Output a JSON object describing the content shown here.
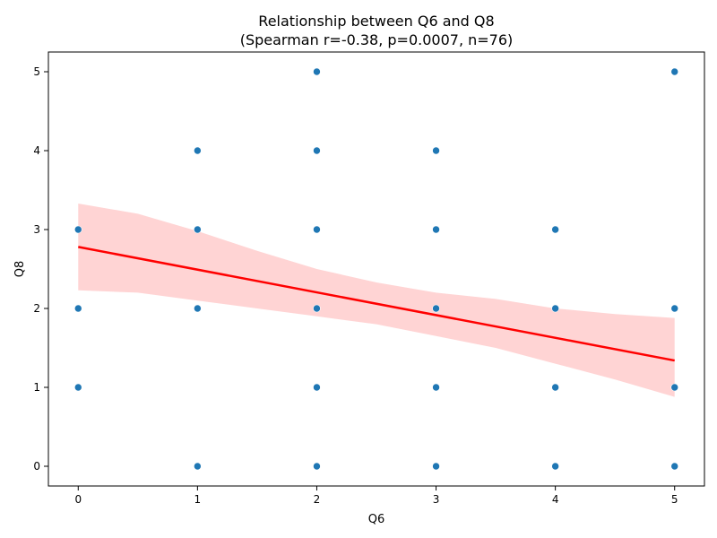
{
  "chart_data": {
    "type": "scatter",
    "title": "Relationship between Q6 and Q8",
    "subtitle": "(Spearman r=-0.38, p=0.0007, n=76)",
    "xlabel": "Q6",
    "ylabel": "Q8",
    "xlim": [
      -0.25,
      5.25
    ],
    "ylim": [
      -0.25,
      5.25
    ],
    "xticks": [
      0,
      1,
      2,
      3,
      4,
      5
    ],
    "yticks": [
      0,
      1,
      2,
      3,
      4,
      5
    ],
    "grid": false,
    "points": [
      {
        "x": 0,
        "y": 3
      },
      {
        "x": 0,
        "y": 2
      },
      {
        "x": 0,
        "y": 1
      },
      {
        "x": 1,
        "y": 4
      },
      {
        "x": 1,
        "y": 3
      },
      {
        "x": 1,
        "y": 2
      },
      {
        "x": 1,
        "y": 0
      },
      {
        "x": 2,
        "y": 5
      },
      {
        "x": 2,
        "y": 4
      },
      {
        "x": 2,
        "y": 3
      },
      {
        "x": 2,
        "y": 2
      },
      {
        "x": 2,
        "y": 1
      },
      {
        "x": 2,
        "y": 0
      },
      {
        "x": 3,
        "y": 4
      },
      {
        "x": 3,
        "y": 3
      },
      {
        "x": 3,
        "y": 2
      },
      {
        "x": 3,
        "y": 1
      },
      {
        "x": 3,
        "y": 0
      },
      {
        "x": 4,
        "y": 3
      },
      {
        "x": 4,
        "y": 2
      },
      {
        "x": 4,
        "y": 1
      },
      {
        "x": 4,
        "y": 0
      },
      {
        "x": 5,
        "y": 5
      },
      {
        "x": 5,
        "y": 2
      },
      {
        "x": 5,
        "y": 1
      },
      {
        "x": 5,
        "y": 0
      }
    ],
    "point_color": "#1f77b4",
    "regression_line": {
      "color": "#ff0000",
      "x": [
        0,
        5
      ],
      "y": [
        2.78,
        1.34
      ]
    },
    "confidence_band": {
      "color": "#ffcccc",
      "x": [
        0,
        0.5,
        1,
        1.5,
        2,
        2.5,
        3,
        3.5,
        4,
        4.5,
        5
      ],
      "upper": [
        3.33,
        3.2,
        2.98,
        2.73,
        2.5,
        2.33,
        2.2,
        2.12,
        2.0,
        1.93,
        1.88
      ],
      "lower": [
        2.23,
        2.2,
        2.1,
        2.0,
        1.9,
        1.8,
        1.65,
        1.5,
        1.3,
        1.1,
        0.88
      ]
    }
  }
}
